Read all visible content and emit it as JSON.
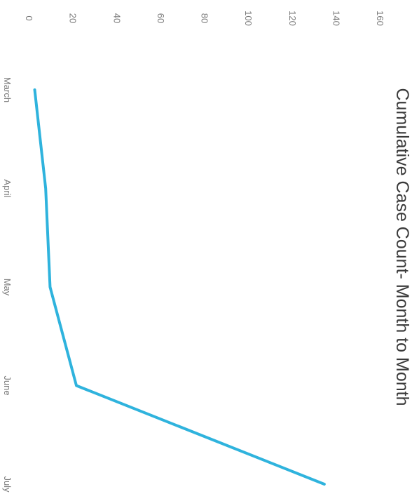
{
  "chart_data": {
    "type": "line",
    "title": "Cumulative Case Count- Month to Month",
    "xlabel": "",
    "ylabel": "",
    "categories": [
      "March",
      "April",
      "May",
      "June",
      "July"
    ],
    "series": [
      {
        "values": [
          4,
          9,
          11,
          23,
          136
        ]
      }
    ],
    "ylim": [
      0,
      160
    ],
    "yticks": [
      0,
      20,
      40,
      60,
      80,
      100,
      120,
      140,
      160
    ],
    "grid": false,
    "legend": "none",
    "orientation": "rotated 90° clockwise",
    "colors": {
      "line": "#2fb3dd",
      "text": "#7a7a7a",
      "title": "#3a3a3a"
    }
  }
}
